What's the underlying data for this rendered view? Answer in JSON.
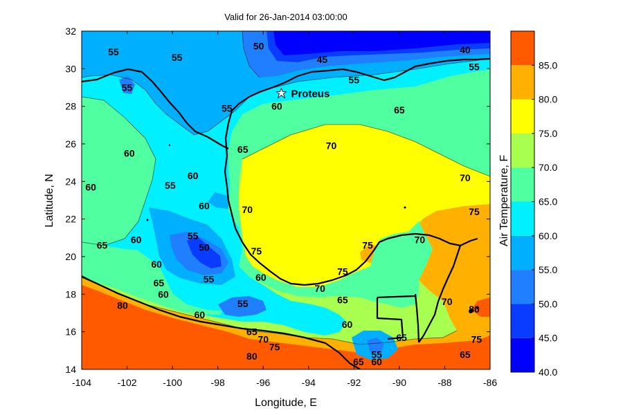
{
  "title": "Valid for 26-Jan-2014 03:00:00",
  "x_axis": {
    "label": "Longitude, E",
    "ticks": [
      {
        "value": -104,
        "label": "-104"
      },
      {
        "value": -102,
        "label": "-102"
      },
      {
        "value": -100,
        "label": "-100"
      },
      {
        "value": -98,
        "label": "-98"
      },
      {
        "value": -96,
        "label": "-96"
      },
      {
        "value": -94,
        "label": "-94"
      },
      {
        "value": -92,
        "label": "-92"
      },
      {
        "value": -90,
        "label": "-90"
      },
      {
        "value": -88,
        "label": "-88"
      },
      {
        "value": -86,
        "label": "-86"
      }
    ],
    "range": [
      -104,
      -86
    ]
  },
  "y_axis": {
    "label": "Latitude, N",
    "ticks": [
      {
        "value": 14,
        "label": "14"
      },
      {
        "value": 16,
        "label": "16"
      },
      {
        "value": 18,
        "label": "18"
      },
      {
        "value": 20,
        "label": "20"
      },
      {
        "value": 22,
        "label": "22"
      },
      {
        "value": 24,
        "label": "24"
      },
      {
        "value": 26,
        "label": "26"
      },
      {
        "value": 28,
        "label": "28"
      },
      {
        "value": 30,
        "label": "30"
      },
      {
        "value": 32,
        "label": "32"
      }
    ],
    "range": [
      14,
      32
    ]
  },
  "colorbar": {
    "label": "Air Temperature, F",
    "ticks": [
      "40.0",
      "45.0",
      "50.0",
      "55.0",
      "60.0",
      "65.0",
      "70.0",
      "75.0",
      "80.0",
      "85.0"
    ],
    "bands": [
      {
        "from": 40,
        "to": 45,
        "color": "#0000ff"
      },
      {
        "from": 45,
        "to": 50,
        "color": "#0a3cff"
      },
      {
        "from": 50,
        "to": 55,
        "color": "#1f7fff"
      },
      {
        "from": 55,
        "to": 60,
        "color": "#00b0ff"
      },
      {
        "from": 60,
        "to": 65,
        "color": "#00f0ff"
      },
      {
        "from": 65,
        "to": 70,
        "color": "#50ffa0"
      },
      {
        "from": 70,
        "to": 75,
        "color": "#a8ff50"
      },
      {
        "from": 75,
        "to": 80,
        "color": "#ffff00"
      },
      {
        "from": 80,
        "to": 85,
        "color": "#ffb000"
      },
      {
        "from": 85,
        "to": 90,
        "color": "#ff5a00"
      }
    ]
  },
  "station": {
    "name": "Proteus",
    "lon": -95.2,
    "lat": 28.7
  },
  "contour_labels": [
    {
      "text": "55",
      "lon": -102.6,
      "lat": 30.9
    },
    {
      "text": "55",
      "lon": -99.8,
      "lat": 30.6
    },
    {
      "text": "50",
      "lon": -96.2,
      "lat": 31.2
    },
    {
      "text": "45",
      "lon": -93.4,
      "lat": 30.5
    },
    {
      "text": "40",
      "lon": -87.1,
      "lat": 31.0
    },
    {
      "text": "55",
      "lon": -86.7,
      "lat": 30.1
    },
    {
      "text": "55",
      "lon": -102.0,
      "lat": 29.0
    },
    {
      "text": "55",
      "lon": -92.0,
      "lat": 29.4
    },
    {
      "text": "60",
      "lon": -95.4,
      "lat": 28.0
    },
    {
      "text": "55",
      "lon": -97.6,
      "lat": 27.9
    },
    {
      "text": "65",
      "lon": -90.0,
      "lat": 27.8
    },
    {
      "text": "60",
      "lon": -101.9,
      "lat": 25.5
    },
    {
      "text": "65",
      "lon": -96.9,
      "lat": 25.7
    },
    {
      "text": "70",
      "lon": -93.0,
      "lat": 25.9
    },
    {
      "text": "70",
      "lon": -87.1,
      "lat": 24.2
    },
    {
      "text": "60",
      "lon": -99.1,
      "lat": 24.3
    },
    {
      "text": "55",
      "lon": -100.1,
      "lat": 23.8
    },
    {
      "text": "60",
      "lon": -103.6,
      "lat": 23.7
    },
    {
      "text": "60",
      "lon": -98.6,
      "lat": 22.7
    },
    {
      "text": "70",
      "lon": -96.7,
      "lat": 22.5
    },
    {
      "text": "75",
      "lon": -86.7,
      "lat": 22.4
    },
    {
      "text": "55",
      "lon": -99.1,
      "lat": 21.1
    },
    {
      "text": "60",
      "lon": -101.6,
      "lat": 20.9
    },
    {
      "text": "65",
      "lon": -103.1,
      "lat": 20.6
    },
    {
      "text": "50",
      "lon": -98.6,
      "lat": 20.5
    },
    {
      "text": "75",
      "lon": -96.3,
      "lat": 20.3
    },
    {
      "text": "70",
      "lon": -89.1,
      "lat": 20.9
    },
    {
      "text": "75",
      "lon": -91.4,
      "lat": 20.6
    },
    {
      "text": "60",
      "lon": -100.7,
      "lat": 19.6
    },
    {
      "text": "75",
      "lon": -92.5,
      "lat": 19.2
    },
    {
      "text": "60",
      "lon": -96.1,
      "lat": 18.9
    },
    {
      "text": "55",
      "lon": -98.4,
      "lat": 18.8
    },
    {
      "text": "65",
      "lon": -100.6,
      "lat": 18.6
    },
    {
      "text": "60",
      "lon": -100.4,
      "lat": 18.0
    },
    {
      "text": "70",
      "lon": -93.5,
      "lat": 18.3
    },
    {
      "text": "65",
      "lon": -92.5,
      "lat": 17.7
    },
    {
      "text": "55",
      "lon": -96.9,
      "lat": 17.5
    },
    {
      "text": "80",
      "lon": -102.2,
      "lat": 17.4
    },
    {
      "text": "70",
      "lon": -87.9,
      "lat": 17.6
    },
    {
      "text": "60",
      "lon": -98.8,
      "lat": 16.9
    },
    {
      "text": "80",
      "lon": -86.7,
      "lat": 17.2
    },
    {
      "text": "60",
      "lon": -92.3,
      "lat": 16.4
    },
    {
      "text": "65",
      "lon": -96.5,
      "lat": 16.0
    },
    {
      "text": "70",
      "lon": -96.0,
      "lat": 15.6
    },
    {
      "text": "65",
      "lon": -89.9,
      "lat": 15.7
    },
    {
      "text": "75",
      "lon": -95.5,
      "lat": 15.2
    },
    {
      "text": "75",
      "lon": -86.6,
      "lat": 15.6
    },
    {
      "text": "80",
      "lon": -96.5,
      "lat": 14.7
    },
    {
      "text": "55",
      "lon": -91.0,
      "lat": 14.8
    },
    {
      "text": "60",
      "lon": -91.0,
      "lat": 14.4
    },
    {
      "text": "65",
      "lon": -91.8,
      "lat": 14.4
    },
    {
      "text": "65",
      "lon": -87.1,
      "lat": 14.8
    }
  ]
}
